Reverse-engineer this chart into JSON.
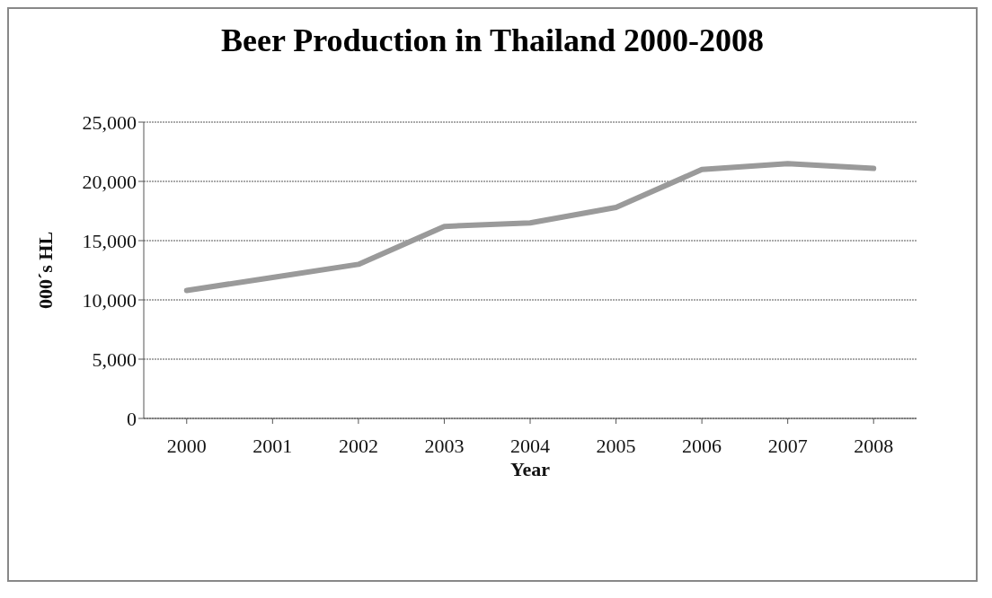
{
  "chart_data": {
    "type": "line",
    "title": "Beer Production in Thailand 2000-2008",
    "xlabel": "Year",
    "ylabel": "000´s HL",
    "categories": [
      "2000",
      "2001",
      "2002",
      "2003",
      "2004",
      "2005",
      "2006",
      "2007",
      "2008"
    ],
    "series": [
      {
        "color": "#9a9a9a",
        "values": [
          10800,
          11900,
          13000,
          16200,
          16500,
          17800,
          21000,
          21500,
          21100
        ]
      }
    ],
    "ylim": [
      0,
      25000
    ],
    "yticks": [
      0,
      {
        "value": 5000,
        "label": "5,000"
      },
      {
        "value": 10000,
        "label": "10,000"
      },
      {
        "value": 15000,
        "label": "15,000"
      },
      {
        "value": 20000,
        "label": "20,000"
      },
      {
        "value": 25000,
        "label": "25,000"
      }
    ],
    "grid": "y",
    "marker": "none",
    "line_style": "solid"
  }
}
